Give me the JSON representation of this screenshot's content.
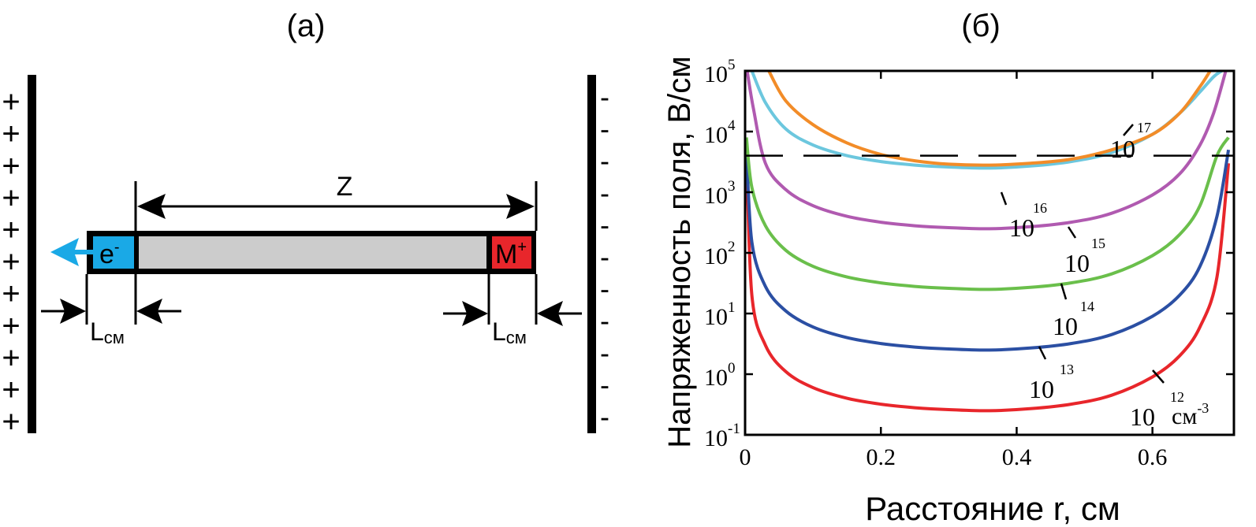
{
  "panel_a": {
    "label": "(a)",
    "z_label": "Z",
    "electron_label": "e",
    "electron_sup": "-",
    "ion_label": "M",
    "ion_sup": "+",
    "lcm_main": "L",
    "lcm_sub": "см",
    "plus_sign": "+",
    "minus_sign": "-",
    "colors": {
      "electron": "#1aa9e6",
      "ion": "#e8262b",
      "channel": "#cccccc",
      "arrow": "#1aa9e6"
    }
  },
  "chart_data": {
    "panel_label": "(б)",
    "type": "line",
    "xlabel": "Расстояние r, см",
    "ylabel": "Напряженность поля, В/см",
    "y_scale": "log",
    "xlim": [
      0,
      0.72
    ],
    "ylim": [
      0.1,
      100000
    ],
    "xticks": [
      0,
      0.2,
      0.4,
      0.6
    ],
    "xtick_labels": [
      "0",
      "0.2",
      "0.4",
      "0.6"
    ],
    "yticks": [
      0.1,
      1,
      10,
      100,
      1000,
      10000,
      100000
    ],
    "ytick_base": "10",
    "ytick_exps": [
      "-1",
      "0",
      "1",
      "2",
      "3",
      "4",
      "5"
    ],
    "threshold_line": {
      "y": 4000,
      "style": "dashed"
    },
    "series": [
      {
        "name": "10^12 см^-3",
        "base": "10",
        "exp": "12",
        "unit": "см",
        "unit_exp": "-3",
        "color": "#e8262b",
        "x": [
          0.002,
          0.01,
          0.03,
          0.06,
          0.1,
          0.15,
          0.2,
          0.25,
          0.3,
          0.36,
          0.42,
          0.48,
          0.54,
          0.6,
          0.64,
          0.67,
          0.695,
          0.712
        ],
        "y": [
          5000,
          20,
          3,
          1.1,
          0.6,
          0.4,
          0.32,
          0.28,
          0.26,
          0.25,
          0.27,
          0.32,
          0.45,
          0.9,
          2,
          6,
          40,
          3000
        ]
      },
      {
        "name": "10^13",
        "base": "10",
        "exp": "13",
        "unit": "",
        "unit_exp": "",
        "color": "#2b4fa3",
        "x": [
          0.002,
          0.01,
          0.03,
          0.06,
          0.1,
          0.15,
          0.2,
          0.25,
          0.3,
          0.36,
          0.42,
          0.48,
          0.54,
          0.6,
          0.64,
          0.67,
          0.695,
          0.712
        ],
        "y": [
          5000,
          150,
          28,
          11,
          6,
          4,
          3.2,
          2.8,
          2.6,
          2.5,
          2.7,
          3.2,
          4.5,
          9,
          20,
          60,
          400,
          5000
        ]
      },
      {
        "name": "10^14",
        "base": "10",
        "exp": "14",
        "unit": "",
        "unit_exp": "",
        "color": "#6abf4b",
        "x": [
          0.002,
          0.01,
          0.03,
          0.06,
          0.1,
          0.15,
          0.2,
          0.25,
          0.3,
          0.36,
          0.42,
          0.48,
          0.54,
          0.6,
          0.64,
          0.67,
          0.695,
          0.712
        ],
        "y": [
          8000,
          1200,
          280,
          110,
          60,
          40,
          32,
          28,
          26,
          25,
          27,
          32,
          45,
          90,
          200,
          600,
          4000,
          8000
        ]
      },
      {
        "name": "10^15",
        "base": "10",
        "exp": "15",
        "unit": "",
        "unit_exp": "",
        "color": "#b05ab0",
        "x": [
          0.003,
          0.012,
          0.03,
          0.06,
          0.1,
          0.15,
          0.2,
          0.25,
          0.3,
          0.36,
          0.42,
          0.48,
          0.54,
          0.6,
          0.64,
          0.67,
          0.69,
          0.708
        ],
        "y": [
          100000,
          25000,
          3000,
          1100,
          600,
          400,
          320,
          280,
          260,
          250,
          270,
          320,
          450,
          900,
          2000,
          6000,
          20000,
          100000
        ]
      },
      {
        "name": "10^16",
        "base": "10",
        "exp": "16",
        "unit": "",
        "unit_exp": "",
        "color": "#6cc7de",
        "x": [
          0.01,
          0.03,
          0.06,
          0.1,
          0.15,
          0.2,
          0.25,
          0.3,
          0.36,
          0.42,
          0.48,
          0.54,
          0.6,
          0.64,
          0.67,
          0.69,
          0.702
        ],
        "y": [
          100000,
          30000,
          11000,
          6000,
          4000,
          3200,
          2800,
          2600,
          2500,
          2700,
          3200,
          4500,
          9000,
          20000,
          45000,
          80000,
          100000
        ]
      },
      {
        "name": "10^17",
        "base": "10",
        "exp": "17",
        "unit": "",
        "unit_exp": "",
        "color": "#f28c28",
        "x": [
          0.035,
          0.06,
          0.1,
          0.15,
          0.2,
          0.25,
          0.3,
          0.36,
          0.42,
          0.48,
          0.54,
          0.6,
          0.64,
          0.67,
          0.685
        ],
        "y": [
          100000,
          32000,
          13000,
          6500,
          4200,
          3300,
          2900,
          2800,
          3000,
          3500,
          5000,
          9000,
          20000,
          55000,
          100000
        ]
      }
    ]
  }
}
